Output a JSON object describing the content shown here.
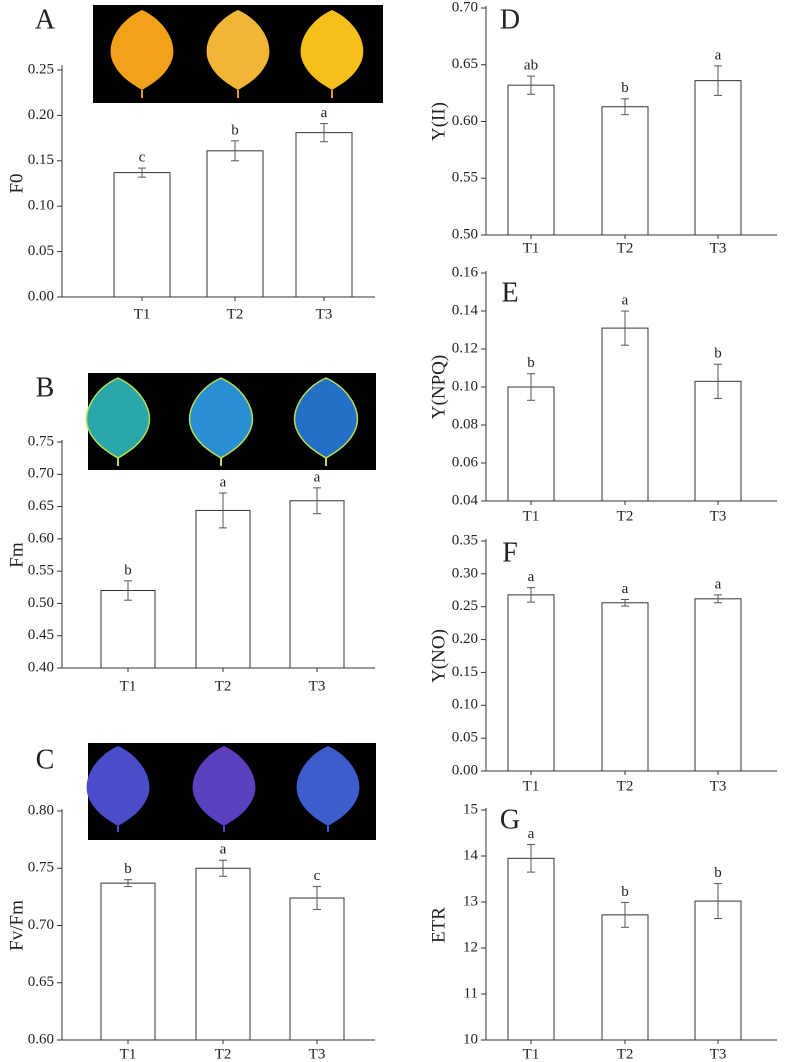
{
  "chart_data": [
    {
      "type": "bar",
      "panel": "A",
      "ylabel": "F0",
      "categories": [
        "T1",
        "T2",
        "T3"
      ],
      "values": [
        0.137,
        0.161,
        0.181
      ],
      "errors": [
        0.005,
        0.011,
        0.01
      ],
      "letters": [
        "c",
        "b",
        "a"
      ],
      "color": "#ffffff",
      "ylim": [
        0,
        0.25
      ],
      "yticks": [
        {
          "value": 0,
          "label": "0.00"
        },
        {
          "value": 0.05,
          "label": "0.05"
        },
        {
          "value": 0.1,
          "label": "0.10"
        },
        {
          "value": 0.15,
          "label": "0.15"
        },
        {
          "value": 0.2,
          "label": "0.20"
        },
        {
          "value": 0.25,
          "label": "0.25"
        }
      ]
    },
    {
      "type": "bar",
      "panel": "B",
      "ylabel": "Fm",
      "categories": [
        "T1",
        "T2",
        "T3"
      ],
      "values": [
        0.52,
        0.644,
        0.659
      ],
      "errors": [
        0.015,
        0.027,
        0.02
      ],
      "letters": [
        "b",
        "a",
        "a"
      ],
      "color": "#ffffff",
      "ylim": [
        0.4,
        0.75
      ],
      "yticks": [
        {
          "value": 0.4,
          "label": "0.40"
        },
        {
          "value": 0.45,
          "label": "0.45"
        },
        {
          "value": 0.5,
          "label": "0.50"
        },
        {
          "value": 0.55,
          "label": "0.55"
        },
        {
          "value": 0.6,
          "label": "0.60"
        },
        {
          "value": 0.65,
          "label": "0.65"
        },
        {
          "value": 0.7,
          "label": "0.70"
        },
        {
          "value": 0.75,
          "label": "0.75"
        }
      ]
    },
    {
      "type": "bar",
      "panel": "C",
      "ylabel": "Fv/Fm",
      "categories": [
        "T1",
        "T2",
        "T3"
      ],
      "values": [
        0.737,
        0.75,
        0.724
      ],
      "errors": [
        0.003,
        0.007,
        0.01
      ],
      "letters": [
        "b",
        "a",
        "c"
      ],
      "color": "#ffffff",
      "ylim": [
        0.6,
        0.8
      ],
      "yticks": [
        {
          "value": 0.6,
          "label": "0.60"
        },
        {
          "value": 0.65,
          "label": "0.65"
        },
        {
          "value": 0.7,
          "label": "0.70"
        },
        {
          "value": 0.75,
          "label": "0.75"
        },
        {
          "value": 0.8,
          "label": "0.80"
        }
      ]
    },
    {
      "type": "bar",
      "panel": "D",
      "ylabel": "Y(II)",
      "categories": [
        "T1",
        "T2",
        "T3"
      ],
      "values": [
        0.632,
        0.613,
        0.636
      ],
      "errors": [
        0.008,
        0.007,
        0.013
      ],
      "letters": [
        "ab",
        "b",
        "a"
      ],
      "color": "#ffffff",
      "ylim": [
        0.5,
        0.7
      ],
      "yticks": [
        {
          "value": 0.5,
          "label": "0.50"
        },
        {
          "value": 0.55,
          "label": "0.55"
        },
        {
          "value": 0.6,
          "label": "0.60"
        },
        {
          "value": 0.65,
          "label": "0.65"
        },
        {
          "value": 0.7,
          "label": "0.70"
        }
      ]
    },
    {
      "type": "bar",
      "panel": "E",
      "ylabel": "Y(NPQ)",
      "categories": [
        "T1",
        "T2",
        "T3"
      ],
      "values": [
        0.1,
        0.131,
        0.103
      ],
      "errors": [
        0.007,
        0.009,
        0.009
      ],
      "letters": [
        "b",
        "a",
        "b"
      ],
      "color": "#ffffff",
      "ylim": [
        0.04,
        0.16
      ],
      "yticks": [
        {
          "value": 0.04,
          "label": "0.04"
        },
        {
          "value": 0.06,
          "label": "0.06"
        },
        {
          "value": 0.08,
          "label": "0.08"
        },
        {
          "value": 0.1,
          "label": "0.10"
        },
        {
          "value": 0.12,
          "label": "0.12"
        },
        {
          "value": 0.14,
          "label": "0.14"
        },
        {
          "value": 0.16,
          "label": "0.16"
        }
      ]
    },
    {
      "type": "bar",
      "panel": "F",
      "ylabel": "Y(NO)",
      "categories": [
        "T1",
        "T2",
        "T3"
      ],
      "values": [
        0.268,
        0.256,
        0.262
      ],
      "errors": [
        0.011,
        0.005,
        0.006
      ],
      "letters": [
        "a",
        "a",
        "a"
      ],
      "color": "#ffffff",
      "ylim": [
        0,
        0.35
      ],
      "yticks": [
        {
          "value": 0,
          "label": "0.00"
        },
        {
          "value": 0.05,
          "label": "0.05"
        },
        {
          "value": 0.1,
          "label": "0.10"
        },
        {
          "value": 0.15,
          "label": "0.15"
        },
        {
          "value": 0.2,
          "label": "0.20"
        },
        {
          "value": 0.25,
          "label": "0.25"
        },
        {
          "value": 0.3,
          "label": "0.30"
        },
        {
          "value": 0.35,
          "label": "0.35"
        }
      ]
    },
    {
      "type": "bar",
      "panel": "G",
      "ylabel": "ETR",
      "categories": [
        "T1",
        "T2",
        "T3"
      ],
      "values": [
        13.95,
        12.72,
        13.02
      ],
      "errors": [
        0.3,
        0.27,
        0.38
      ],
      "letters": [
        "a",
        "b",
        "b"
      ],
      "color": "#ffffff",
      "ylim": [
        10,
        15
      ],
      "yticks": [
        10,
        11,
        12,
        13,
        14,
        15
      ]
    }
  ]
}
